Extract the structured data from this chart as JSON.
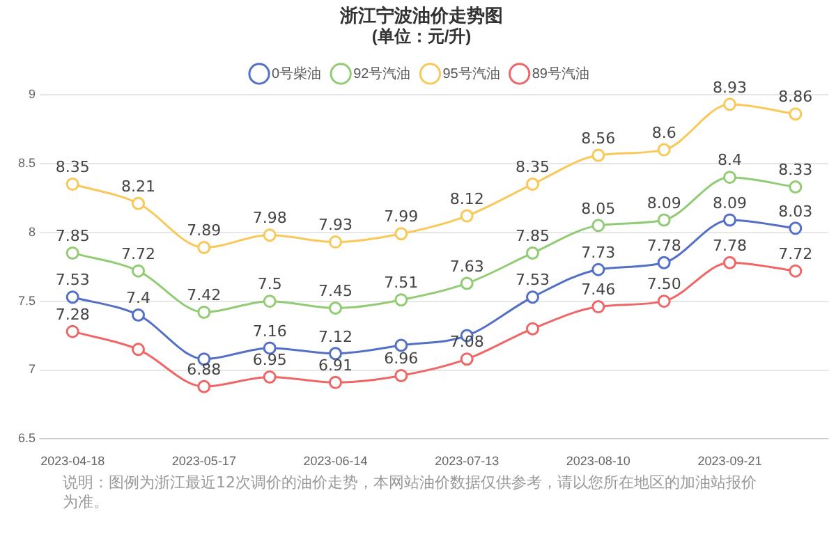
{
  "chart_data": {
    "type": "line",
    "title": "浙江宁波油价走势图",
    "subtitle": "(单位：元/升)",
    "categories": [
      "2023-04-18",
      null,
      "2023-05-17",
      null,
      "2023-06-14",
      null,
      "2023-07-13",
      null,
      "2023-08-10",
      null,
      "2023-09-21",
      null
    ],
    "series": [
      {
        "name": "0号柴油",
        "color": "#5470c6",
        "values": [
          7.53,
          7.4,
          7.08,
          7.16,
          7.12,
          7.18,
          7.25,
          7.53,
          7.73,
          7.78,
          8.09,
          8.03
        ],
        "value_labels": [
          "7.53",
          "7.4",
          null,
          "7.16",
          "7.12",
          null,
          null,
          "7.53",
          "7.73",
          "7.78",
          "8.09",
          "8.03"
        ]
      },
      {
        "name": "92号汽油",
        "color": "#91cc75",
        "values": [
          7.85,
          7.72,
          7.42,
          7.5,
          7.45,
          7.51,
          7.63,
          7.85,
          8.05,
          8.09,
          8.4,
          8.33
        ],
        "value_labels": [
          "7.85",
          "7.72",
          "7.42",
          "7.5",
          "7.45",
          "7.51",
          "7.63",
          "7.85",
          "8.05",
          "8.09",
          "8.4",
          "8.33"
        ]
      },
      {
        "name": "95号汽油",
        "color": "#fac858",
        "values": [
          8.35,
          8.21,
          7.89,
          7.98,
          7.93,
          7.99,
          8.12,
          8.35,
          8.56,
          8.6,
          8.93,
          8.86
        ],
        "value_labels": [
          "8.35",
          "8.21",
          "7.89",
          "7.98",
          "7.93",
          "7.99",
          "8.12",
          "8.35",
          "8.56",
          "8.6",
          "8.93",
          "8.86"
        ]
      },
      {
        "name": "89号汽油",
        "color": "#ee6666",
        "values": [
          7.28,
          7.15,
          6.88,
          6.95,
          6.91,
          6.96,
          7.08,
          7.3,
          7.46,
          7.5,
          7.78,
          7.72
        ],
        "value_labels": [
          "7.28",
          null,
          "6.88",
          "6.95",
          "6.91",
          "6.96",
          "7.08",
          null,
          "7.46",
          "7.50",
          "7.78",
          "7.72"
        ]
      }
    ],
    "ylim": [
      6.5,
      9
    ],
    "yticks": [
      6.5,
      7,
      7.5,
      8,
      8.5,
      9
    ],
    "grid": "y",
    "legend": "top",
    "marker": "circle",
    "line_style": "solid",
    "annotations": [
      "说明：图例为浙江最近12次调价的油价走势，本网站油价数据仅供参考，请以您所在地区的加油站报价为准。"
    ]
  }
}
